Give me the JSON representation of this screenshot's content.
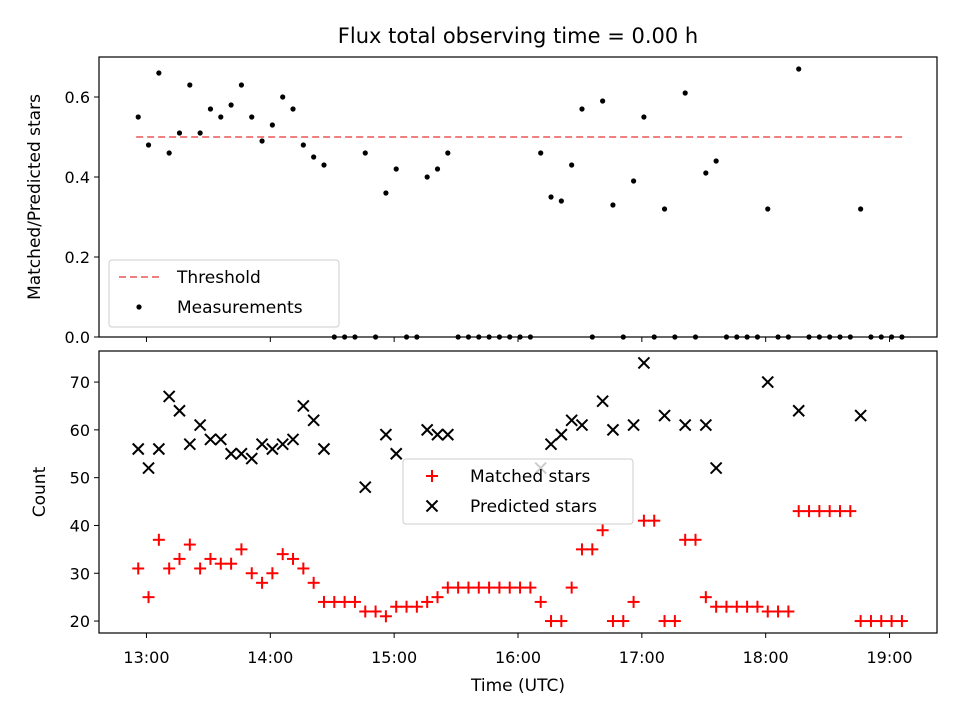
{
  "chart_data": [
    {
      "type": "scatter",
      "title": "Flux total observing time = 0.00 h",
      "xlabel": "",
      "ylabel": "Matched/Predicted stars",
      "ylim": [
        0,
        0.7
      ],
      "xlim": [
        "12:37",
        "19:23"
      ],
      "y_ticks": [
        "0.0",
        "0.2",
        "0.4",
        "0.6"
      ],
      "y_tick_values": [
        0,
        0.2,
        0.4,
        0.6
      ],
      "x_ticks_shown_labels": false,
      "grid": false,
      "legend_position": "lower left",
      "series": [
        {
          "name": "Threshold",
          "style": "dashed-line",
          "color": "#f08080",
          "points": [
            [
              "12:55",
              0.5
            ],
            [
              "19:08",
              0.5
            ]
          ]
        },
        {
          "name": "Measurements",
          "style": "dot",
          "color": "#000000",
          "points": [
            [
              "12:56",
              0.55
            ],
            [
              "13:01",
              0.48
            ],
            [
              "13:06",
              0.66
            ],
            [
              "13:11",
              0.46
            ],
            [
              "13:16",
              0.51
            ],
            [
              "13:21",
              0.63
            ],
            [
              "13:26",
              0.51
            ],
            [
              "13:31",
              0.57
            ],
            [
              "13:36",
              0.55
            ],
            [
              "13:41",
              0.58
            ],
            [
              "13:46",
              0.63
            ],
            [
              "13:51",
              0.55
            ],
            [
              "13:56",
              0.49
            ],
            [
              "14:01",
              0.53
            ],
            [
              "14:06",
              0.6
            ],
            [
              "14:11",
              0.57
            ],
            [
              "14:16",
              0.48
            ],
            [
              "14:21",
              0.45
            ],
            [
              "14:26",
              0.43
            ],
            [
              "14:31",
              0.0
            ],
            [
              "14:36",
              0.0
            ],
            [
              "14:41",
              0.0
            ],
            [
              "14:46",
              0.46
            ],
            [
              "14:51",
              0.0
            ],
            [
              "14:56",
              0.36
            ],
            [
              "15:01",
              0.42
            ],
            [
              "15:06",
              0.0
            ],
            [
              "15:11",
              0.0
            ],
            [
              "15:16",
              0.4
            ],
            [
              "15:21",
              0.42
            ],
            [
              "15:26",
              0.46
            ],
            [
              "15:31",
              0.0
            ],
            [
              "15:36",
              0.0
            ],
            [
              "15:41",
              0.0
            ],
            [
              "15:46",
              0.0
            ],
            [
              "15:51",
              0.0
            ],
            [
              "15:56",
              0.0
            ],
            [
              "16:01",
              0.0
            ],
            [
              "16:06",
              0.0
            ],
            [
              "16:11",
              0.46
            ],
            [
              "16:16",
              0.35
            ],
            [
              "16:21",
              0.34
            ],
            [
              "16:26",
              0.43
            ],
            [
              "16:31",
              0.57
            ],
            [
              "16:36",
              0.0
            ],
            [
              "16:41",
              0.59
            ],
            [
              "16:46",
              0.33
            ],
            [
              "16:51",
              0.0
            ],
            [
              "16:56",
              0.39
            ],
            [
              "17:01",
              0.55
            ],
            [
              "17:06",
              0.0
            ],
            [
              "17:11",
              0.32
            ],
            [
              "17:16",
              0.0
            ],
            [
              "17:21",
              0.61
            ],
            [
              "17:26",
              0.0
            ],
            [
              "17:31",
              0.41
            ],
            [
              "17:36",
              0.44
            ],
            [
              "17:41",
              0.0
            ],
            [
              "17:46",
              0.0
            ],
            [
              "17:51",
              0.0
            ],
            [
              "17:56",
              0.0
            ],
            [
              "18:01",
              0.32
            ],
            [
              "18:06",
              0.0
            ],
            [
              "18:11",
              0.0
            ],
            [
              "18:16",
              0.67
            ],
            [
              "18:21",
              0.0
            ],
            [
              "18:26",
              0.0
            ],
            [
              "18:31",
              0.0
            ],
            [
              "18:36",
              0.0
            ],
            [
              "18:41",
              0.0
            ],
            [
              "18:46",
              0.32
            ],
            [
              "18:51",
              0.0
            ],
            [
              "18:56",
              0.0
            ],
            [
              "19:01",
              0.0
            ],
            [
              "19:06",
              0.0
            ]
          ]
        }
      ]
    },
    {
      "type": "scatter",
      "title": "",
      "xlabel": "Time (UTC)",
      "ylabel": "Count",
      "ylim": [
        17.5,
        76.5
      ],
      "xlim": [
        "12:37",
        "19:23"
      ],
      "x_ticks": [
        "13:00",
        "14:00",
        "15:00",
        "16:00",
        "17:00",
        "18:00",
        "19:00"
      ],
      "y_ticks": [
        "20",
        "30",
        "40",
        "50",
        "60",
        "70"
      ],
      "y_tick_values": [
        20,
        30,
        40,
        50,
        60,
        70
      ],
      "grid": false,
      "legend_position": "center",
      "series": [
        {
          "name": "Matched stars",
          "marker": "+",
          "color": "#ff0000",
          "points": [
            [
              "12:56",
              31
            ],
            [
              "13:01",
              25
            ],
            [
              "13:06",
              37
            ],
            [
              "13:11",
              31
            ],
            [
              "13:16",
              33
            ],
            [
              "13:21",
              36
            ],
            [
              "13:26",
              31
            ],
            [
              "13:31",
              33
            ],
            [
              "13:36",
              32
            ],
            [
              "13:41",
              32
            ],
            [
              "13:46",
              35
            ],
            [
              "13:51",
              30
            ],
            [
              "13:56",
              28
            ],
            [
              "14:01",
              30
            ],
            [
              "14:06",
              34
            ],
            [
              "14:11",
              33
            ],
            [
              "14:16",
              31
            ],
            [
              "14:21",
              28
            ],
            [
              "14:26",
              24
            ],
            [
              "14:31",
              24
            ],
            [
              "14:36",
              24
            ],
            [
              "14:41",
              24
            ],
            [
              "14:46",
              22
            ],
            [
              "14:51",
              22
            ],
            [
              "14:56",
              21
            ],
            [
              "15:01",
              23
            ],
            [
              "15:06",
              23
            ],
            [
              "15:11",
              23
            ],
            [
              "15:16",
              24
            ],
            [
              "15:21",
              25
            ],
            [
              "15:26",
              27
            ],
            [
              "15:31",
              27
            ],
            [
              "15:36",
              27
            ],
            [
              "15:41",
              27
            ],
            [
              "15:46",
              27
            ],
            [
              "15:51",
              27
            ],
            [
              "15:56",
              27
            ],
            [
              "16:01",
              27
            ],
            [
              "16:06",
              27
            ],
            [
              "16:11",
              24
            ],
            [
              "16:16",
              20
            ],
            [
              "16:21",
              20
            ],
            [
              "16:26",
              27
            ],
            [
              "16:31",
              35
            ],
            [
              "16:36",
              35
            ],
            [
              "16:41",
              39
            ],
            [
              "16:46",
              20
            ],
            [
              "16:51",
              20
            ],
            [
              "16:56",
              24
            ],
            [
              "17:01",
              41
            ],
            [
              "17:06",
              41
            ],
            [
              "17:11",
              20
            ],
            [
              "17:16",
              20
            ],
            [
              "17:21",
              37
            ],
            [
              "17:26",
              37
            ],
            [
              "17:31",
              25
            ],
            [
              "17:36",
              23
            ],
            [
              "17:41",
              23
            ],
            [
              "17:46",
              23
            ],
            [
              "17:51",
              23
            ],
            [
              "17:56",
              23
            ],
            [
              "18:01",
              22
            ],
            [
              "18:06",
              22
            ],
            [
              "18:11",
              22
            ],
            [
              "18:16",
              43
            ],
            [
              "18:21",
              43
            ],
            [
              "18:26",
              43
            ],
            [
              "18:31",
              43
            ],
            [
              "18:36",
              43
            ],
            [
              "18:41",
              43
            ],
            [
              "18:46",
              20
            ],
            [
              "18:51",
              20
            ],
            [
              "18:56",
              20
            ],
            [
              "19:01",
              20
            ],
            [
              "19:06",
              20
            ]
          ]
        },
        {
          "name": "Predicted stars",
          "marker": "x",
          "color": "#000000",
          "points": [
            [
              "12:56",
              56
            ],
            [
              "13:01",
              52
            ],
            [
              "13:06",
              56
            ],
            [
              "13:11",
              67
            ],
            [
              "13:16",
              64
            ],
            [
              "13:21",
              57
            ],
            [
              "13:26",
              61
            ],
            [
              "13:31",
              58
            ],
            [
              "13:36",
              58
            ],
            [
              "13:41",
              55
            ],
            [
              "13:46",
              55
            ],
            [
              "13:51",
              54
            ],
            [
              "13:56",
              57
            ],
            [
              "14:01",
              56
            ],
            [
              "14:06",
              57
            ],
            [
              "14:11",
              58
            ],
            [
              "14:16",
              65
            ],
            [
              "14:21",
              62
            ],
            [
              "14:26",
              56
            ],
            [
              "14:46",
              48
            ],
            [
              "14:56",
              59
            ],
            [
              "15:01",
              55
            ],
            [
              "15:16",
              60
            ],
            [
              "15:21",
              59
            ],
            [
              "15:26",
              59
            ],
            [
              "16:11",
              52
            ],
            [
              "16:16",
              57
            ],
            [
              "16:21",
              59
            ],
            [
              "16:26",
              62
            ],
            [
              "16:31",
              61
            ],
            [
              "16:41",
              66
            ],
            [
              "16:46",
              60
            ],
            [
              "16:56",
              61
            ],
            [
              "17:01",
              74
            ],
            [
              "17:11",
              63
            ],
            [
              "17:21",
              61
            ],
            [
              "17:31",
              61
            ],
            [
              "17:36",
              52
            ],
            [
              "18:01",
              70
            ],
            [
              "18:16",
              64
            ],
            [
              "18:46",
              63
            ]
          ]
        }
      ]
    }
  ]
}
